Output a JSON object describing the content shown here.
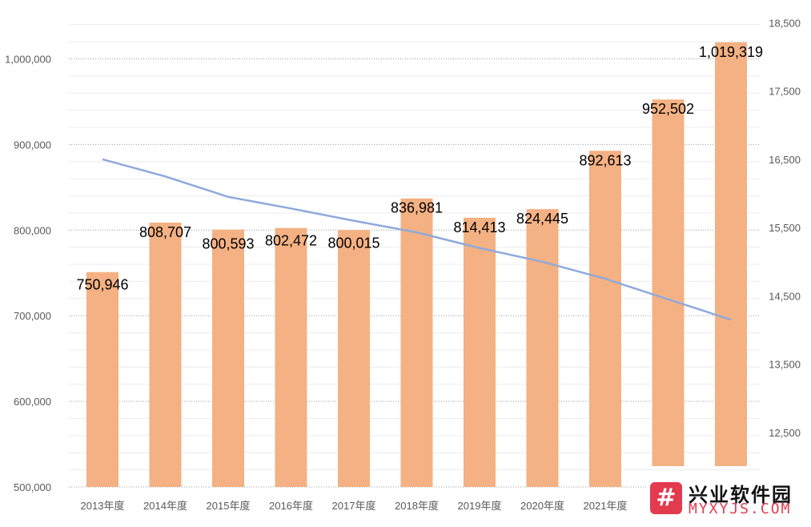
{
  "chart_data": {
    "type": "bar",
    "categories": [
      "2013年度",
      "2014年度",
      "2015年度",
      "2016年度",
      "2017年度",
      "2018年度",
      "2019年度",
      "2020年度",
      "2021年度",
      "",
      ""
    ],
    "series": [
      {
        "type": "bar",
        "color": "#f4b183",
        "values": [
          750946,
          808707,
          800593,
          802472,
          800015,
          836981,
          814413,
          824445,
          892613,
          952502,
          1019319
        ],
        "labels": [
          "750,946",
          "808,707",
          "800,593",
          "802,472",
          "800,015",
          "836,981",
          "814,413",
          "824,445",
          "892,613",
          "952,502",
          "1,019,319"
        ]
      },
      {
        "type": "line",
        "color": "#8eaadb",
        "axis": "right",
        "values": [
          16500,
          16250,
          15950,
          15780,
          15600,
          15430,
          15200,
          15000,
          14750,
          14450,
          14150
        ]
      }
    ],
    "y_left": {
      "ylim": [
        500000,
        1050000
      ],
      "ticks": [
        "500,000",
        "600,000",
        "700,000",
        "800,000",
        "900,000",
        "1,000,000"
      ],
      "values": [
        500000,
        600000,
        700000,
        800000,
        900000,
        1000000
      ]
    },
    "y_right": {
      "ylim": [
        11700,
        18600
      ],
      "ticks": [
        "12,500",
        "13,500",
        "14,500",
        "15,500",
        "16,500",
        "17,500",
        "18,500"
      ],
      "values": [
        12500,
        13500,
        14500,
        15500,
        16500,
        17500,
        18500
      ]
    },
    "grid": true
  },
  "watermark": {
    "badge": "#",
    "title": "兴业软件园",
    "url": "MYXYJS.COM"
  }
}
